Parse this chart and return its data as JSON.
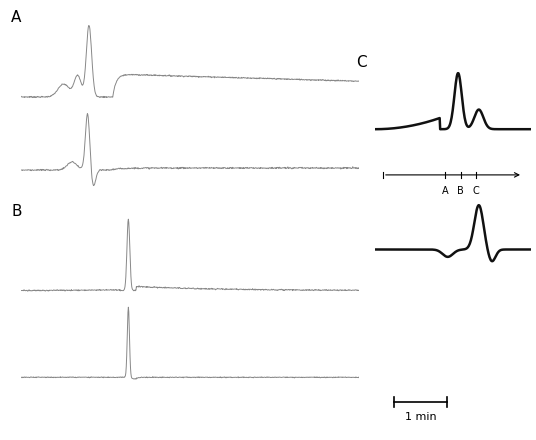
{
  "fig_width": 5.36,
  "fig_height": 4.4,
  "dpi": 100,
  "background": "#ffffff",
  "line_color_AB": "#888888",
  "line_color_C": "#111111",
  "label_A": "A",
  "label_B": "B",
  "label_C": "C",
  "lw_AB": 0.7,
  "lw_C": 1.8
}
